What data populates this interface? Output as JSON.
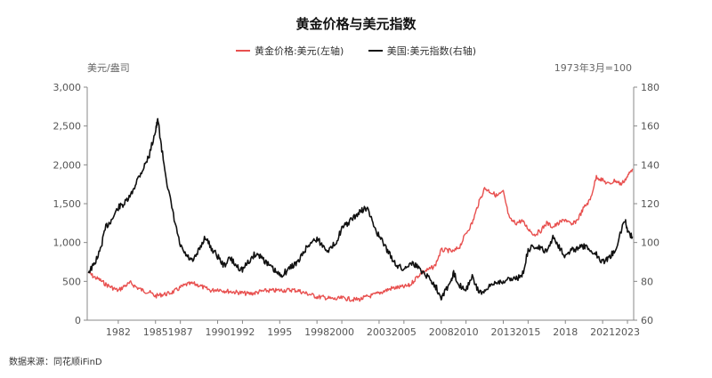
{
  "chart_data": {
    "type": "line",
    "title": "黄金价格与美元指数",
    "left_unit": "美元/盎司",
    "right_unit": "1973年3月=100",
    "source": "数据来源：同花顺iFinD",
    "x_range": [
      1979.5,
      2023.5
    ],
    "x_ticks": [
      "1982",
      "1985",
      "1987",
      "1990",
      "1992",
      "1995",
      "1998",
      "2000",
      "2003",
      "2005",
      "2008",
      "2010",
      "2013",
      "2015",
      "2018",
      "2021",
      "2023"
    ],
    "x_tick_years": [
      1982,
      1985,
      1987,
      1990,
      1992,
      1995,
      1998,
      2000,
      2003,
      2005,
      2008,
      2010,
      2013,
      2015,
      2018,
      2021,
      2023
    ],
    "y_left": {
      "range": [
        0,
        3000
      ],
      "ticks": [
        "0",
        "500",
        "1,000",
        "1,500",
        "2,000",
        "2,500",
        "3,000"
      ],
      "values": [
        0,
        500,
        1000,
        1500,
        2000,
        2500,
        3000
      ]
    },
    "y_right": {
      "range": [
        60,
        180
      ],
      "ticks": [
        "60",
        "80",
        "100",
        "120",
        "140",
        "160",
        "180"
      ],
      "values": [
        60,
        80,
        100,
        120,
        140,
        160,
        180
      ]
    },
    "series": [
      {
        "name": "黄金价格:美元(左轴)",
        "color": "#e8504f",
        "axis": "left",
        "x": [
          1979.6,
          1980.0,
          1980.5,
          1981.0,
          1981.5,
          1982.0,
          1982.5,
          1983.0,
          1983.5,
          1984.0,
          1984.5,
          1985.0,
          1985.5,
          1986.0,
          1986.5,
          1987.0,
          1987.5,
          1988.0,
          1988.5,
          1989.0,
          1989.5,
          1990.0,
          1990.5,
          1991.0,
          1991.5,
          1992.0,
          1992.5,
          1993.0,
          1993.5,
          1994.0,
          1994.5,
          1995.0,
          1995.5,
          1996.0,
          1996.5,
          1997.0,
          1997.5,
          1998.0,
          1998.5,
          1999.0,
          1999.5,
          2000.0,
          2000.5,
          2001.0,
          2001.5,
          2002.0,
          2002.5,
          2003.0,
          2003.5,
          2004.0,
          2004.5,
          2005.0,
          2005.5,
          2006.0,
          2006.5,
          2007.0,
          2007.5,
          2008.0,
          2008.5,
          2009.0,
          2009.5,
          2010.0,
          2010.5,
          2011.0,
          2011.5,
          2012.0,
          2012.5,
          2013.0,
          2013.5,
          2014.0,
          2014.5,
          2015.0,
          2015.5,
          2016.0,
          2016.5,
          2017.0,
          2017.5,
          2018.0,
          2018.5,
          2019.0,
          2019.5,
          2020.0,
          2020.5,
          2021.0,
          2021.5,
          2022.0,
          2022.5,
          2023.0,
          2023.4
        ],
        "y": [
          620,
          560,
          520,
          460,
          420,
          380,
          440,
          480,
          420,
          380,
          360,
          310,
          330,
          340,
          370,
          420,
          460,
          470,
          450,
          410,
          380,
          400,
          380,
          370,
          360,
          350,
          340,
          350,
          370,
          380,
          380,
          385,
          385,
          390,
          380,
          350,
          330,
          300,
          295,
          280,
          270,
          285,
          275,
          265,
          270,
          300,
          320,
          350,
          380,
          410,
          420,
          430,
          450,
          550,
          620,
          650,
          700,
          900,
          900,
          880,
          950,
          1120,
          1250,
          1500,
          1700,
          1650,
          1600,
          1650,
          1300,
          1250,
          1280,
          1180,
          1100,
          1150,
          1250,
          1200,
          1250,
          1300,
          1220,
          1300,
          1450,
          1550,
          1850,
          1800,
          1750,
          1800,
          1750,
          1850,
          1950
        ]
      },
      {
        "name": "美国:美元指数(右轴)",
        "color": "#111111",
        "axis": "right",
        "x": [
          1979.6,
          1980.0,
          1980.5,
          1981.0,
          1981.5,
          1982.0,
          1982.5,
          1983.0,
          1983.5,
          1984.0,
          1984.5,
          1985.0,
          1985.2,
          1985.5,
          1986.0,
          1986.5,
          1987.0,
          1987.5,
          1988.0,
          1988.5,
          1989.0,
          1989.5,
          1990.0,
          1990.5,
          1991.0,
          1991.5,
          1992.0,
          1992.5,
          1993.0,
          1993.5,
          1994.0,
          1994.5,
          1995.0,
          1995.5,
          1996.0,
          1996.5,
          1997.0,
          1997.5,
          1998.0,
          1998.5,
          1999.0,
          1999.5,
          2000.0,
          2000.5,
          2001.0,
          2001.5,
          2002.0,
          2002.5,
          2003.0,
          2003.5,
          2004.0,
          2004.5,
          2005.0,
          2005.5,
          2006.0,
          2006.5,
          2007.0,
          2007.5,
          2008.0,
          2008.3,
          2008.8,
          2009.0,
          2009.5,
          2010.0,
          2010.5,
          2011.0,
          2011.5,
          2012.0,
          2012.5,
          2013.0,
          2013.5,
          2014.0,
          2014.5,
          2015.0,
          2015.5,
          2016.0,
          2016.5,
          2017.0,
          2017.5,
          2018.0,
          2018.5,
          2019.0,
          2019.5,
          2020.0,
          2020.5,
          2021.0,
          2021.5,
          2022.0,
          2022.8,
          2023.0,
          2023.4
        ],
        "y": [
          85,
          88,
          95,
          108,
          112,
          118,
          120,
          124,
          132,
          138,
          145,
          158,
          163,
          148,
          128,
          112,
          98,
          93,
          90,
          96,
          103,
          97,
          93,
          88,
          92,
          88,
          86,
          90,
          94,
          93,
          89,
          86,
          83,
          85,
          88,
          90,
          96,
          100,
          102,
          98,
          96,
          100,
          107,
          110,
          113,
          116,
          118,
          110,
          103,
          98,
          92,
          88,
          86,
          90,
          88,
          85,
          82,
          78,
          72,
          75,
          80,
          84,
          78,
          76,
          82,
          75,
          74,
          78,
          80,
          80,
          81,
          82,
          82,
          96,
          98,
          97,
          95,
          103,
          98,
          93,
          96,
          97,
          98,
          96,
          94,
          90,
          92,
          96,
          112,
          106,
          103
        ]
      }
    ]
  }
}
